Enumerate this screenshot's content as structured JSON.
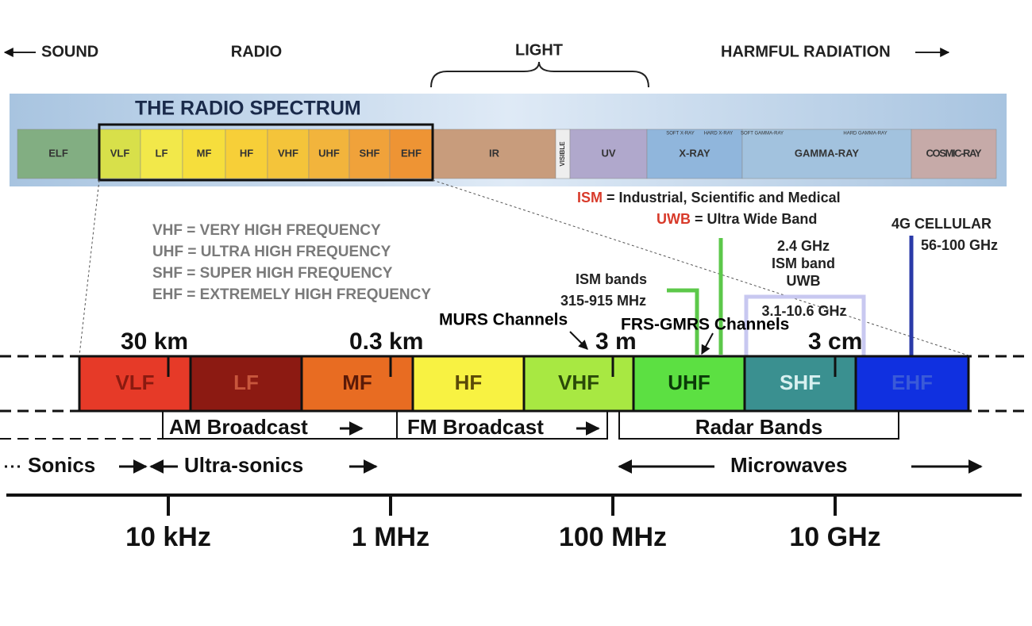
{
  "top_labels": {
    "sound": "SOUND",
    "radio": "RADIO",
    "light": "LIGHT",
    "harmful": "HARMFUL RADIATION"
  },
  "spectrum": {
    "title": "THE RADIO SPECTRUM",
    "bands": [
      "ELF",
      "VLF",
      "LF",
      "MF",
      "HF",
      "VHF",
      "UHF",
      "SHF",
      "EHF",
      "IR",
      "VISIBLE",
      "UV",
      "X-RAY",
      "GAMMA-RAY",
      "COSMIC-RAY"
    ],
    "sub_labels": [
      "SOFT X-RAY",
      "HARD X-RAY",
      "SOFT GAMMA-RAY",
      "HARD GAMMA-RAY"
    ]
  },
  "definitions": [
    {
      "term": "ISM",
      "text": "= Industrial, Scientific and Medical"
    },
    {
      "term": "UWB",
      "text": "= Ultra Wide Band"
    }
  ],
  "abbreviations": [
    "VHF = VERY HIGH FREQUENCY",
    "UHF = ULTRA HIGH FREQUENCY",
    "SHF = SUPER HIGH FREQUENCY",
    "EHF = EXTREMELY HIGH FREQUENCY"
  ],
  "annotations": {
    "ism_bands": [
      "ISM bands",
      "315-915 MHz"
    ],
    "ism_24": [
      "2.4 GHz",
      "ISM band",
      "UWB"
    ],
    "uwb_range": "3.1-10.6 GHz",
    "cellular": [
      "4G CELLULAR",
      "56-100 GHz"
    ],
    "murs": "MURS Channels",
    "frs": "FRS-GMRS Channels"
  },
  "wavelengths": [
    "30 km",
    "0.3 km",
    "3 m",
    "3 cm"
  ],
  "bands": [
    {
      "name": "VLF",
      "color": "#e63a28",
      "text_color": "#8a1a10"
    },
    {
      "name": "LF",
      "color": "#8c1a12",
      "text_color": "#c8563c"
    },
    {
      "name": "MF",
      "color": "#e86c22",
      "text_color": "#5a1a08"
    },
    {
      "name": "HF",
      "color": "#f8f242",
      "text_color": "#5a4a08"
    },
    {
      "name": "VHF",
      "color": "#a8e842",
      "text_color": "#2a4a08"
    },
    {
      "name": "UHF",
      "color": "#5ce042",
      "text_color": "#0a3a08"
    },
    {
      "name": "SHF",
      "color": "#3a9090",
      "text_color": "#d8f0f0"
    },
    {
      "name": "EHF",
      "color": "#1030e0",
      "text_color": "#3a5ad8"
    }
  ],
  "ranges": {
    "am": "AM Broadcast",
    "fm": "FM Broadcast",
    "radar": "Radar Bands",
    "sonics": "Sonics",
    "ultrasonics": "Ultra-sonics",
    "microwaves": "Microwaves"
  },
  "frequencies": [
    "10 kHz",
    "1 MHz",
    "100 MHz",
    "10 GHz"
  ]
}
